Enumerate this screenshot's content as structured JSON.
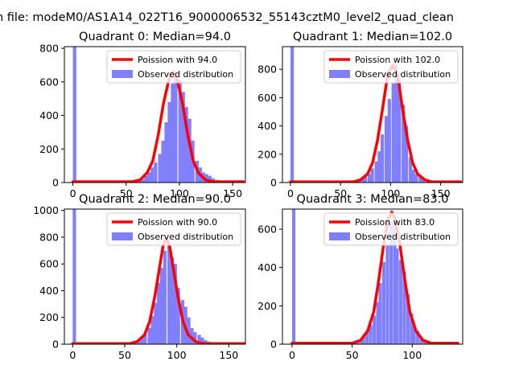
{
  "figure": {
    "suptitle": "n file: modeM0/AS1A14_022T16_9000006532_55143cztM0_level2_quad_clean",
    "hist_color": "#8080ff",
    "curve_color": "#ff0000"
  },
  "chart_data": [
    {
      "type": "bar",
      "title": "Quadrant 0: Median=94.0",
      "xlim": [
        -8,
        162
      ],
      "ylim": [
        0,
        810
      ],
      "xticks": [
        0,
        50,
        100,
        150
      ],
      "yticks": [
        0,
        200,
        400,
        600,
        800
      ],
      "legend": {
        "curve": "Poission with 94.0",
        "hist": "Observed distribution"
      },
      "median": 94.0,
      "bin_width": 3.2,
      "bins": [
        [
          0,
          810
        ],
        [
          3,
          10
        ],
        [
          57,
          3
        ],
        [
          61,
          10
        ],
        [
          64,
          20
        ],
        [
          67,
          40
        ],
        [
          70,
          60
        ],
        [
          73,
          90
        ],
        [
          76,
          120
        ],
        [
          80,
          170
        ],
        [
          83,
          250
        ],
        [
          86,
          360
        ],
        [
          89,
          480
        ],
        [
          92,
          590
        ],
        [
          95,
          650
        ],
        [
          99,
          610
        ],
        [
          102,
          540
        ],
        [
          105,
          450
        ],
        [
          108,
          380
        ],
        [
          111,
          250
        ],
        [
          115,
          130
        ],
        [
          118,
          90
        ],
        [
          121,
          60
        ],
        [
          124,
          50
        ],
        [
          127,
          40
        ],
        [
          130,
          25
        ],
        [
          134,
          15
        ],
        [
          137,
          10
        ],
        [
          140,
          5
        ]
      ],
      "curve": {
        "x": [
          0,
          55,
          63,
          70,
          75,
          80,
          85,
          90,
          94,
          98,
          103,
          108,
          113,
          118,
          125,
          132,
          160
        ],
        "y": [
          5,
          5,
          15,
          60,
          130,
          280,
          470,
          610,
          660,
          610,
          470,
          280,
          130,
          55,
          15,
          5,
          5
        ]
      }
    },
    {
      "type": "bar",
      "title": "Quadrant 1: Median=102.0",
      "xlim": [
        -8,
        172
      ],
      "ylim": [
        0,
        960
      ],
      "xticks": [
        0,
        50,
        100,
        150
      ],
      "yticks": [
        0,
        200,
        400,
        600,
        800
      ],
      "legend": {
        "curve": "Poission with 102.0",
        "hist": "Observed distribution"
      },
      "median": 102.0,
      "bin_width": 3.4,
      "bins": [
        [
          0,
          960
        ],
        [
          3,
          10
        ],
        [
          63,
          5
        ],
        [
          67,
          15
        ],
        [
          70,
          25
        ],
        [
          73,
          40
        ],
        [
          77,
          60
        ],
        [
          80,
          100
        ],
        [
          84,
          150
        ],
        [
          87,
          220
        ],
        [
          90,
          340
        ],
        [
          94,
          470
        ],
        [
          97,
          590
        ],
        [
          101,
          700
        ],
        [
          104,
          830
        ],
        [
          107,
          720
        ],
        [
          111,
          550
        ],
        [
          114,
          400
        ],
        [
          118,
          180
        ],
        [
          121,
          90
        ],
        [
          124,
          60
        ],
        [
          128,
          40
        ],
        [
          131,
          20
        ],
        [
          135,
          12
        ],
        [
          138,
          10
        ],
        [
          141,
          5
        ]
      ],
      "curve": {
        "x": [
          0,
          63,
          70,
          77,
          82,
          87,
          92,
          97,
          102,
          107,
          112,
          117,
          122,
          127,
          134,
          141,
          170
        ],
        "y": [
          5,
          5,
          20,
          60,
          140,
          300,
          520,
          760,
          830,
          760,
          520,
          300,
          140,
          60,
          20,
          5,
          5
        ]
      }
    },
    {
      "type": "bar",
      "title": "Quadrant 2: Median=90.0",
      "xlim": [
        -8,
        166
      ],
      "ylim": [
        0,
        1010
      ],
      "xticks": [
        0,
        50,
        100,
        150
      ],
      "yticks": [
        0,
        200,
        400,
        600,
        800,
        1000
      ],
      "legend": {
        "curve": "Poission with 90.0",
        "hist": "Observed distribution"
      },
      "median": 90.0,
      "bin_width": 3.2,
      "bins": [
        [
          0,
          1010
        ],
        [
          55,
          5
        ],
        [
          59,
          15
        ],
        [
          62,
          25
        ],
        [
          65,
          50
        ],
        [
          68,
          80
        ],
        [
          72,
          120
        ],
        [
          75,
          210
        ],
        [
          78,
          310
        ],
        [
          81,
          460
        ],
        [
          84,
          570
        ],
        [
          87,
          700
        ],
        [
          91,
          750
        ],
        [
          94,
          650
        ],
        [
          97,
          600
        ],
        [
          100,
          420
        ],
        [
          104,
          330
        ],
        [
          107,
          280
        ],
        [
          110,
          200
        ],
        [
          113,
          120
        ],
        [
          116,
          90
        ],
        [
          120,
          70
        ],
        [
          123,
          50
        ],
        [
          126,
          30
        ],
        [
          129,
          20
        ],
        [
          133,
          10
        ],
        [
          136,
          5
        ]
      ],
      "curve": {
        "x": [
          0,
          55,
          62,
          69,
          74,
          79,
          84,
          87,
          90,
          93,
          96,
          101,
          106,
          111,
          118,
          125,
          165
        ],
        "y": [
          5,
          5,
          20,
          70,
          170,
          360,
          600,
          740,
          790,
          740,
          600,
          360,
          170,
          70,
          20,
          5,
          5
        ]
      }
    },
    {
      "type": "bar",
      "title": "Quadrant 3: Median=83.0",
      "xlim": [
        -8,
        142
      ],
      "ylim": [
        0,
        705
      ],
      "xticks": [
        0,
        50,
        100
      ],
      "yticks": [
        0,
        200,
        400,
        600
      ],
      "legend": {
        "curve": "Poission with 83.0",
        "hist": "Observed distribution"
      },
      "median": 83.0,
      "bin_width": 2.8,
      "bins": [
        [
          0,
          705
        ],
        [
          3,
          10
        ],
        [
          50,
          5
        ],
        [
          53,
          10
        ],
        [
          56,
          20
        ],
        [
          58,
          40
        ],
        [
          61,
          70
        ],
        [
          64,
          100
        ],
        [
          67,
          150
        ],
        [
          70,
          220
        ],
        [
          72,
          320
        ],
        [
          75,
          430
        ],
        [
          78,
          520
        ],
        [
          81,
          640
        ],
        [
          84,
          620
        ],
        [
          86,
          500
        ],
        [
          89,
          440
        ],
        [
          92,
          380
        ],
        [
          95,
          260
        ],
        [
          98,
          160
        ],
        [
          100,
          110
        ],
        [
          103,
          70
        ],
        [
          106,
          40
        ],
        [
          109,
          25
        ],
        [
          112,
          15
        ],
        [
          114,
          10
        ],
        [
          117,
          5
        ]
      ],
      "curve": {
        "x": [
          0,
          50,
          57,
          63,
          68,
          72,
          76,
          80,
          83,
          86,
          90,
          94,
          98,
          103,
          109,
          116,
          138
        ],
        "y": [
          5,
          5,
          20,
          70,
          170,
          330,
          510,
          650,
          690,
          650,
          510,
          330,
          170,
          70,
          20,
          5,
          5
        ]
      }
    }
  ]
}
